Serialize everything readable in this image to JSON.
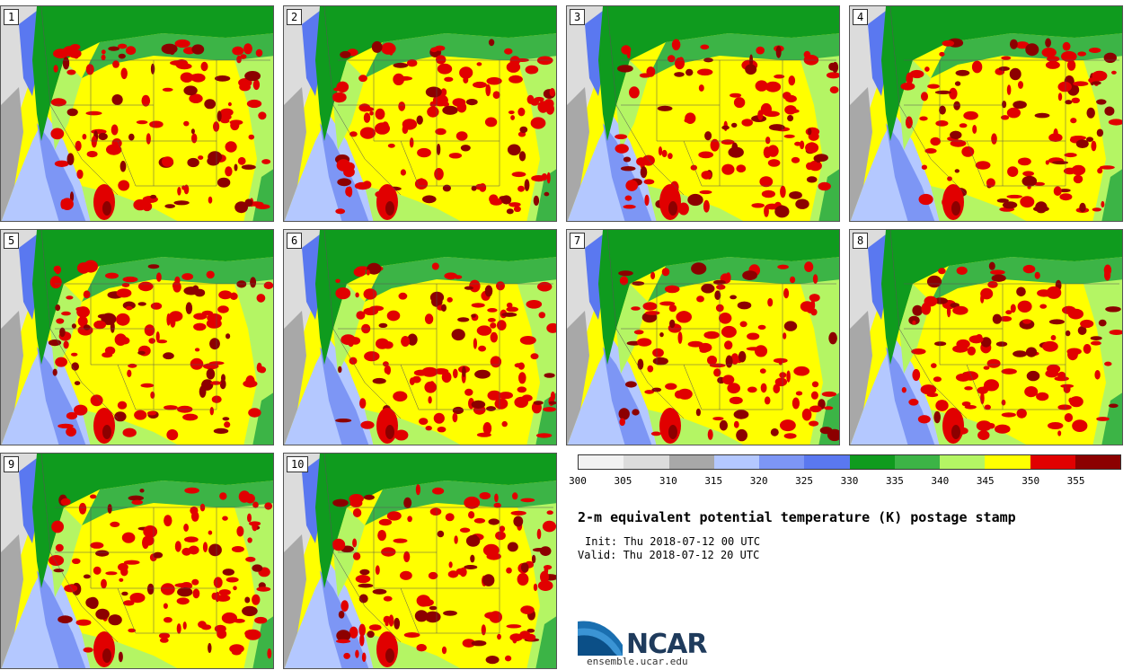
{
  "title": "2-m equivalent potential temperature (K) postage stamp",
  "init": "Init: Thu 2018-07-12 00 UTC",
  "valid": "Valid: Thu 2018-07-12 20 UTC",
  "logo": {
    "name": "NCAR",
    "url": "ensemble.ucar.edu"
  },
  "members": [
    "1",
    "2",
    "3",
    "4",
    "5",
    "6",
    "7",
    "8",
    "9",
    "10"
  ],
  "colorbar": {
    "ticks": [
      "300",
      "305",
      "310",
      "315",
      "320",
      "325",
      "330",
      "335",
      "340",
      "345",
      "350",
      "355"
    ],
    "colors": [
      "#f2f2f2",
      "#dcdcdc",
      "#a8a8a8",
      "#b4c8ff",
      "#7d96f5",
      "#5a78f0",
      "#0f9b1e",
      "#3cb446",
      "#b4f564",
      "#ffff00",
      "#e10000",
      "#8c0000"
    ]
  }
}
